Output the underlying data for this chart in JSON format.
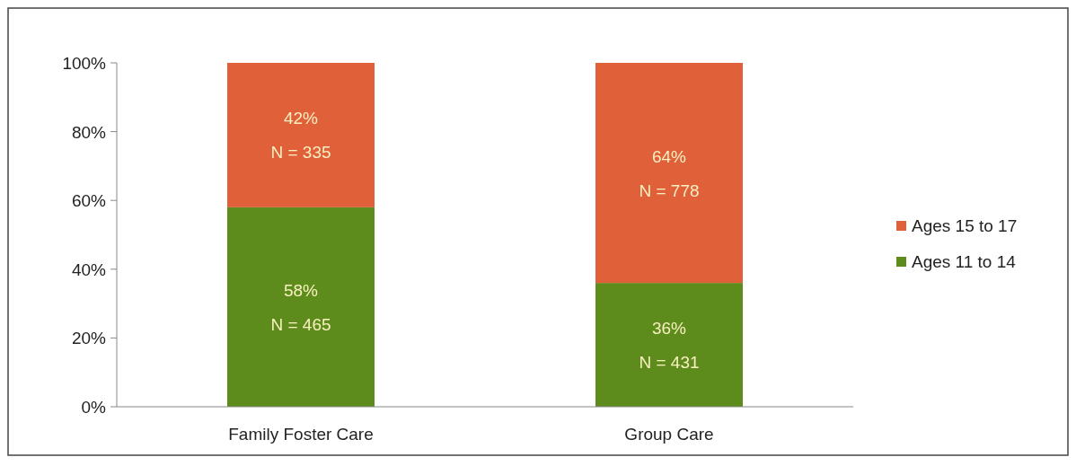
{
  "chart_data": {
    "type": "bar",
    "stacked": true,
    "categories": [
      "Family Foster Care",
      "Group Care"
    ],
    "series": [
      {
        "name": "Ages 11 to 14",
        "color": "#5e8c1c",
        "values": [
          58,
          36
        ],
        "value_labels": [
          "58%\nN = 465",
          "36%\nN = 431"
        ]
      },
      {
        "name": "Ages 15 to 17",
        "color": "#e0603a",
        "values": [
          42,
          64
        ],
        "value_labels": [
          "42%\nN = 335",
          "64%\nN = 778"
        ]
      }
    ],
    "ylim": [
      0,
      100
    ],
    "yticks": [
      {
        "value": 0,
        "label": "0%"
      },
      {
        "value": 20,
        "label": "20%"
      },
      {
        "value": 40,
        "label": "40%"
      },
      {
        "value": 60,
        "label": "60%"
      },
      {
        "value": 80,
        "label": "80%"
      },
      {
        "value": 100,
        "label": "100%"
      }
    ],
    "legend": "right"
  }
}
